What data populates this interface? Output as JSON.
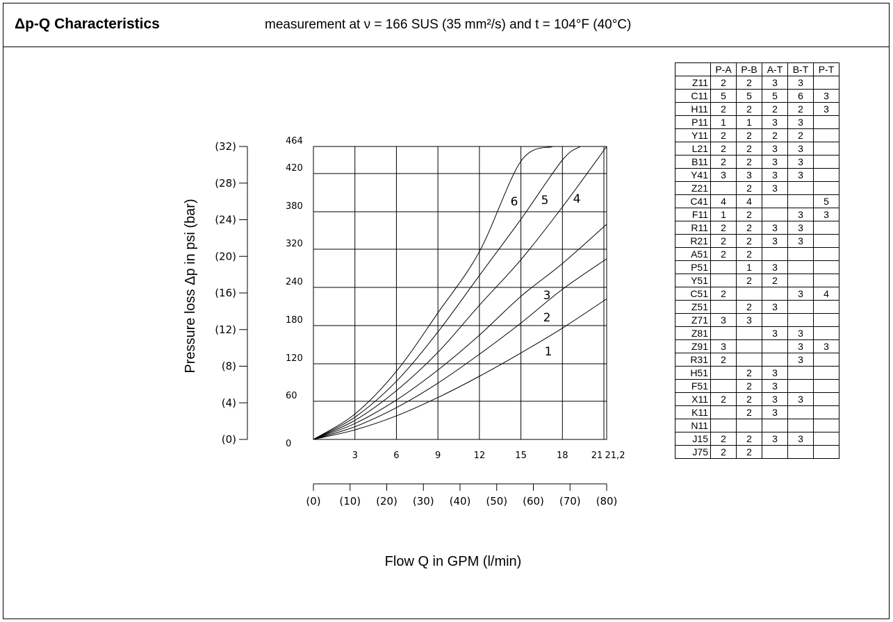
{
  "header": {
    "title": "Δp-Q Characteristics",
    "subtitle": "measurement at ν = 166 SUS (35 mm²/s) and t = 104°F (40°C)"
  },
  "chart_data": {
    "type": "line",
    "xlabel": "Flow Q in GPM (l/min)",
    "ylabel": "Pressure loss Δp in psi (bar)",
    "x_ticks": [
      "3",
      "6",
      "9",
      "12",
      "15",
      "18",
      "21",
      "21,2"
    ],
    "x_ticks_lpm": [
      "(0)",
      "(10)",
      "(20)",
      "(30)",
      "(40)",
      "(50)",
      "(60)",
      "(70)",
      "(80)"
    ],
    "y_ticks_psi": [
      "0",
      "60",
      "120",
      "180",
      "240",
      "320",
      "380",
      "420",
      "464"
    ],
    "y_ticks_bar": [
      "(0)",
      "(4)",
      "(8)",
      "(12)",
      "(16)",
      "(20)",
      "(24)",
      "(28)",
      "(32)"
    ],
    "xlim": [
      0,
      21.2
    ],
    "ylim": [
      0,
      464
    ],
    "grid": true,
    "series": [
      {
        "name": "1",
        "x": [
          0,
          3,
          6,
          9,
          12,
          15,
          18,
          21.2
        ],
        "y": [
          0,
          15,
          37,
          66,
          100,
          137,
          176,
          222
        ]
      },
      {
        "name": "2",
        "x": [
          0,
          3,
          6,
          9,
          12,
          15,
          18,
          21.2
        ],
        "y": [
          0,
          20,
          50,
          89,
          135,
          184,
          237,
          300
        ]
      },
      {
        "name": "3",
        "x": [
          0,
          3,
          6,
          9,
          12,
          15,
          18,
          21.2
        ],
        "y": [
          0,
          25,
          62,
          110,
          165,
          226,
          290,
          360
        ]
      },
      {
        "name": "4",
        "x": [
          0,
          3,
          6,
          9,
          12,
          15,
          18,
          21.2
        ],
        "y": [
          0,
          30,
          77,
          138,
          212,
          298,
          385,
          464
        ]
      },
      {
        "name": "5",
        "x": [
          0,
          3,
          6,
          9,
          12,
          15,
          18,
          19.3
        ],
        "y": [
          0,
          35,
          92,
          170,
          265,
          368,
          442,
          464
        ]
      },
      {
        "name": "6",
        "x": [
          0,
          3,
          6,
          9,
          12,
          15,
          17.3
        ],
        "y": [
          0,
          40,
          108,
          200,
          315,
          440,
          464
        ]
      }
    ],
    "table": {
      "columns": [
        "",
        "P-A",
        "P-B",
        "A-T",
        "B-T",
        "P-T"
      ],
      "rows": [
        [
          "Z11",
          "2",
          "2",
          "3",
          "3",
          ""
        ],
        [
          "C11",
          "5",
          "5",
          "5",
          "6",
          "3"
        ],
        [
          "H11",
          "2",
          "2",
          "2",
          "2",
          "3"
        ],
        [
          "P11",
          "1",
          "1",
          "3",
          "3",
          ""
        ],
        [
          "Y11",
          "2",
          "2",
          "2",
          "2",
          ""
        ],
        [
          "L21",
          "2",
          "2",
          "3",
          "3",
          ""
        ],
        [
          "B11",
          "2",
          "2",
          "3",
          "3",
          ""
        ],
        [
          "Y41",
          "3",
          "3",
          "3",
          "3",
          ""
        ],
        [
          "Z21",
          "",
          "2",
          "3",
          "",
          ""
        ],
        [
          "C41",
          "4",
          "4",
          "",
          "",
          "5"
        ],
        [
          "F11",
          "1",
          "2",
          "",
          "3",
          "3"
        ],
        [
          "R11",
          "2",
          "2",
          "3",
          "3",
          ""
        ],
        [
          "R21",
          "2",
          "2",
          "3",
          "3",
          ""
        ],
        [
          "A51",
          "2",
          "2",
          "",
          "",
          ""
        ],
        [
          "P51",
          "",
          "1",
          "3",
          "",
          ""
        ],
        [
          "Y51",
          "",
          "2",
          "2",
          "",
          ""
        ],
        [
          "C51",
          "2",
          "",
          "",
          "3",
          "4"
        ],
        [
          "Z51",
          "",
          "2",
          "3",
          "",
          ""
        ],
        [
          "Z71",
          "3",
          "3",
          "",
          "",
          ""
        ],
        [
          "Z81",
          "",
          "",
          "3",
          "3",
          ""
        ],
        [
          "Z91",
          "3",
          "",
          "",
          "3",
          "3"
        ],
        [
          "R31",
          "2",
          "",
          "",
          "3",
          ""
        ],
        [
          "H51",
          "",
          "2",
          "3",
          "",
          ""
        ],
        [
          "F51",
          "",
          "2",
          "3",
          "",
          ""
        ],
        [
          "X11",
          "2",
          "2",
          "3",
          "3",
          ""
        ],
        [
          "K11",
          "",
          "2",
          "3",
          "",
          ""
        ],
        [
          "N11",
          "",
          "",
          "",
          "",
          ""
        ],
        [
          "J15",
          "2",
          "2",
          "3",
          "3",
          ""
        ],
        [
          "J75",
          "2",
          "2",
          "",
          "",
          ""
        ]
      ]
    }
  }
}
